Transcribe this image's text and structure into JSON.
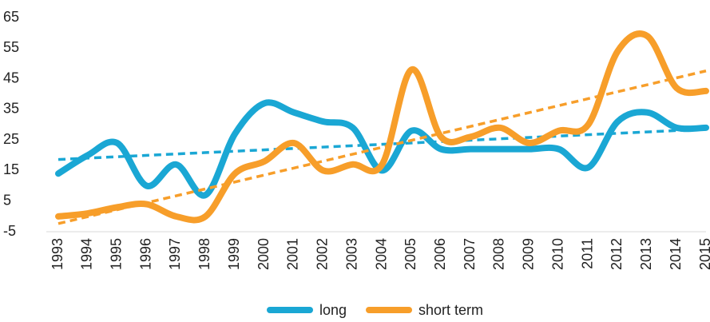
{
  "chart_data": {
    "type": "line",
    "categories": [
      "1993",
      "1994",
      "1995",
      "1996",
      "1997",
      "1998",
      "1999",
      "2000",
      "2001",
      "2002",
      "2003",
      "2004",
      "2005",
      "2006",
      "2007",
      "2008",
      "2009",
      "2010",
      "2011",
      "2012",
      "2013",
      "2014",
      "2015"
    ],
    "series": [
      {
        "name": "long",
        "color": "#1aa7d4",
        "values": [
          14,
          20,
          24,
          10,
          17,
          7,
          27,
          37,
          34,
          31,
          29,
          15,
          28,
          22,
          22,
          22,
          22,
          22,
          16,
          31,
          34,
          29,
          29
        ]
      },
      {
        "name": "short term",
        "color": "#f79e2a",
        "values": [
          0,
          1,
          3,
          4,
          0,
          0,
          14,
          18,
          24,
          15,
          17,
          17,
          48,
          26,
          26,
          29,
          24,
          28,
          30,
          54,
          59,
          42,
          41
        ]
      }
    ],
    "ylim": [
      -5,
      65
    ],
    "yticks": [
      -5,
      5,
      15,
      25,
      35,
      45,
      55,
      65
    ],
    "trendline": true,
    "grid": false,
    "legend": "bottom"
  }
}
